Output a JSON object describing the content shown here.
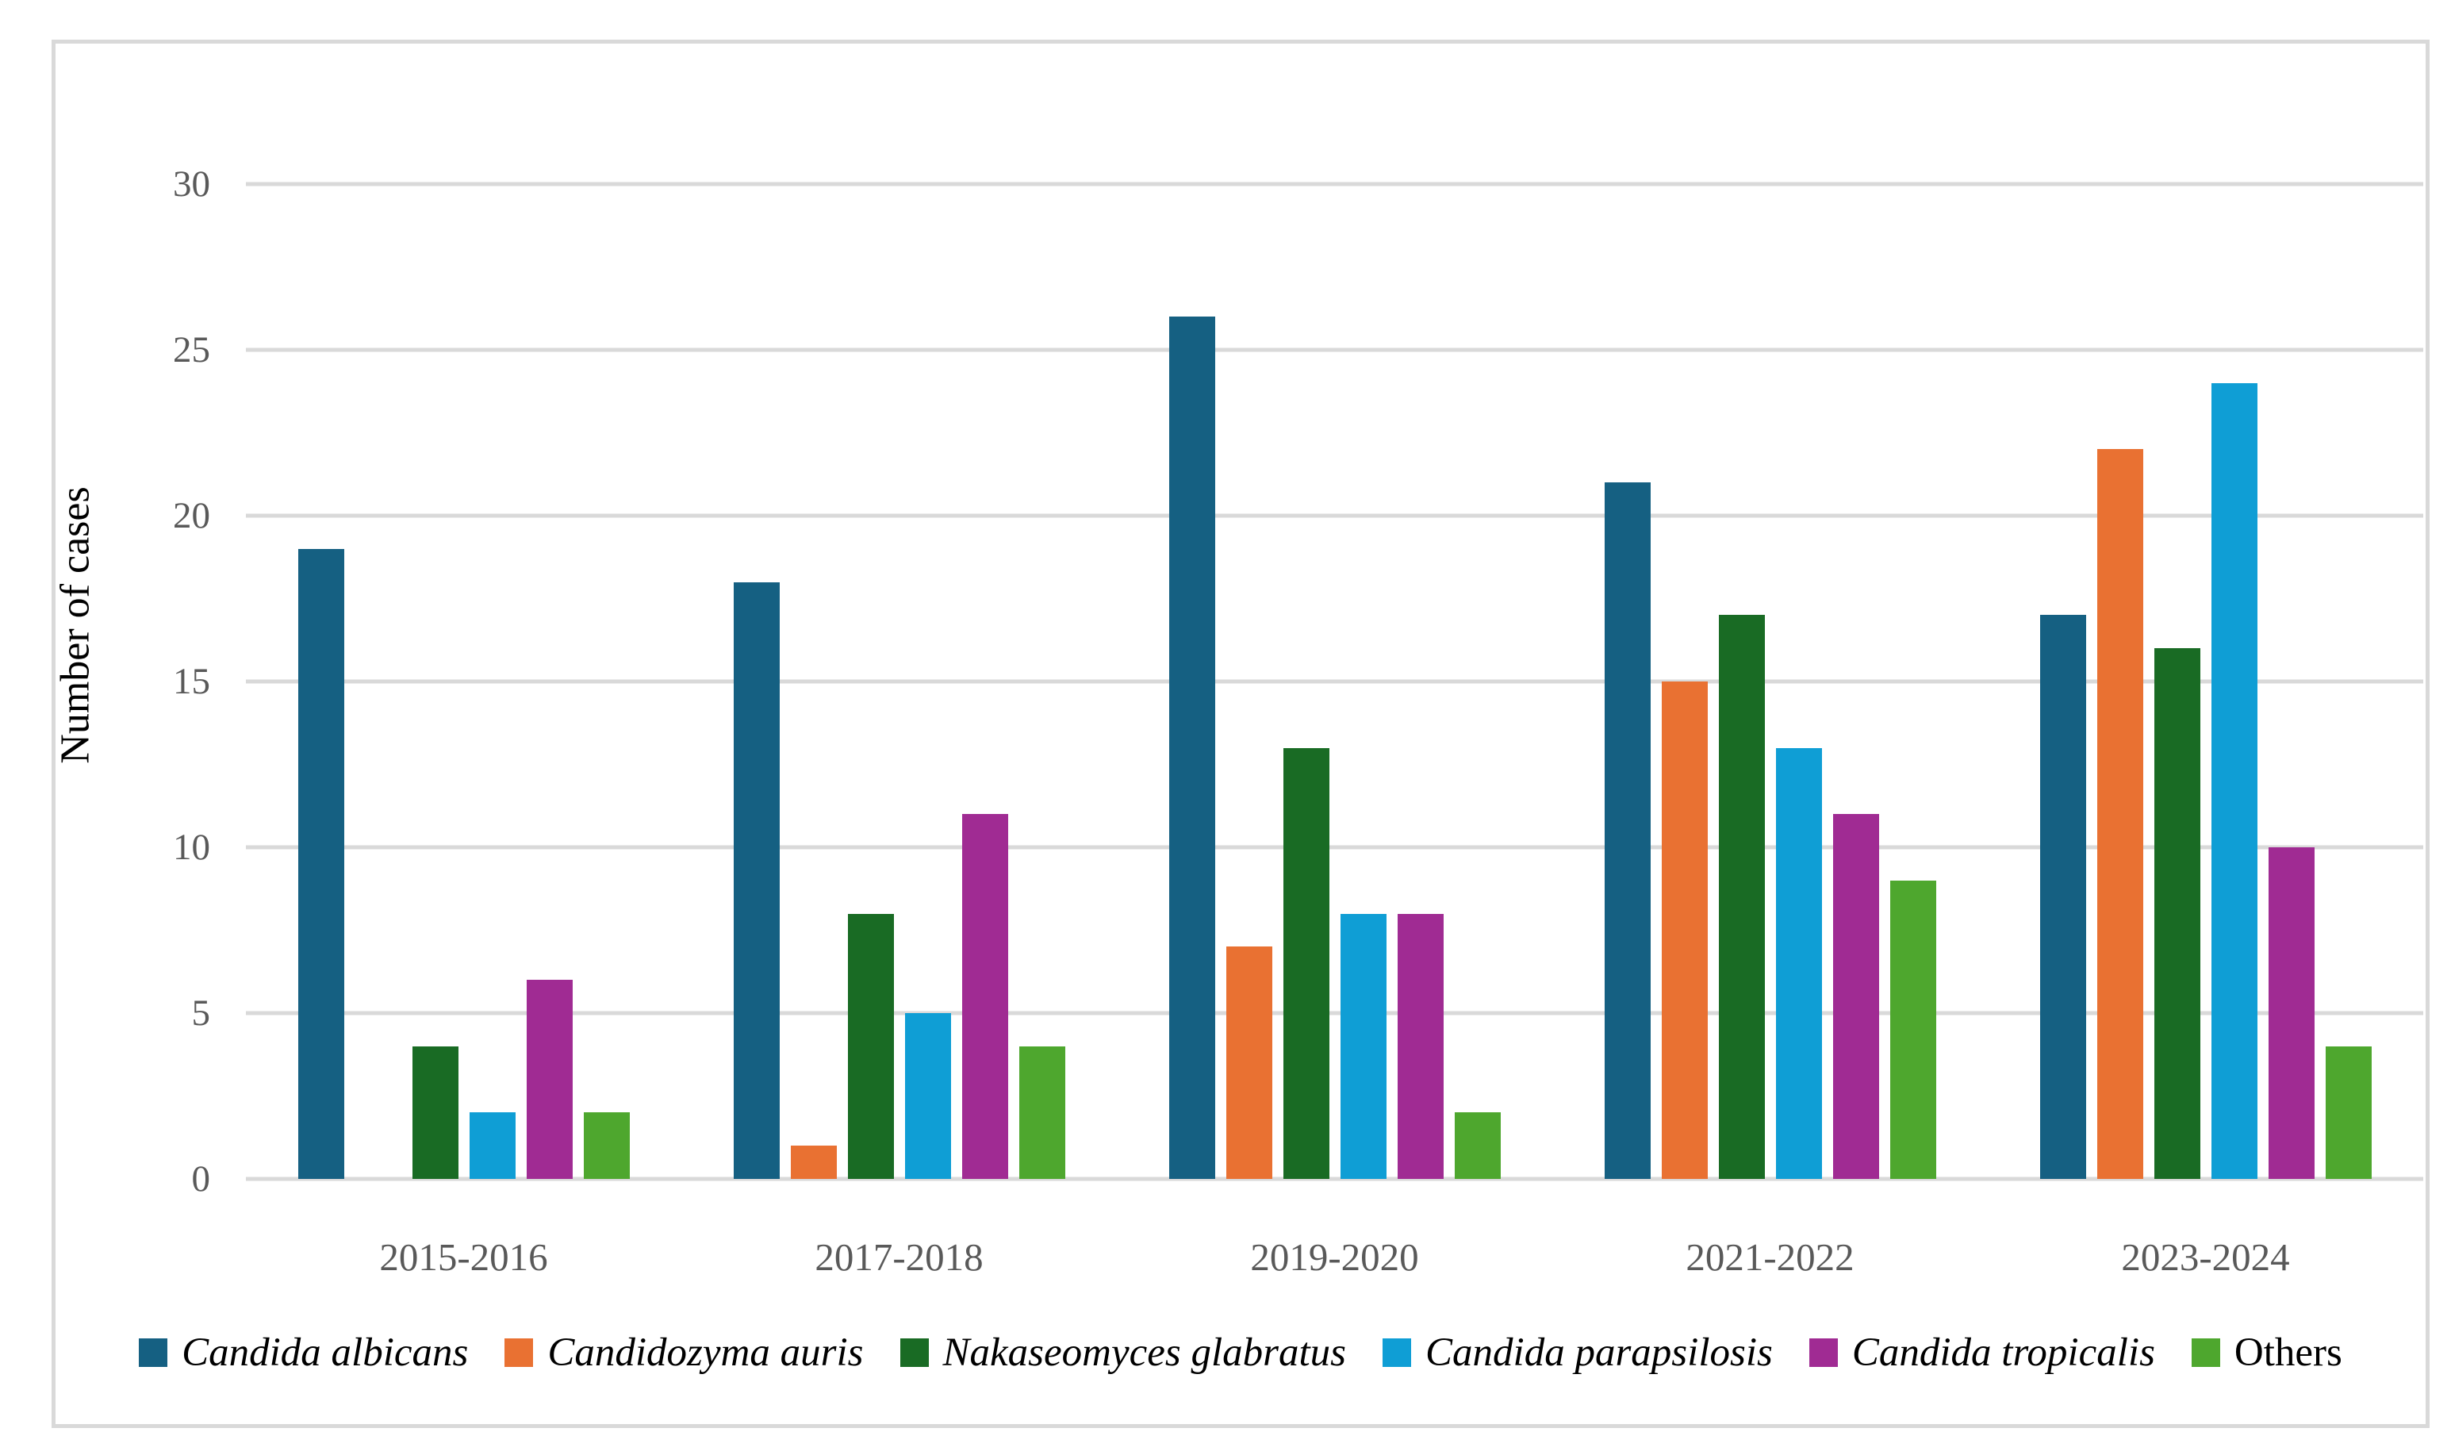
{
  "chart_data": {
    "type": "bar",
    "title": "",
    "ylabel": "Number of cases",
    "xlabel": "",
    "categories": [
      "2015-2016",
      "2017-2018",
      "2019-2020",
      "2021-2022",
      "2023-2024"
    ],
    "series": [
      {
        "name": "Candida albicans",
        "italic": true,
        "color": "#156082",
        "values": [
          19,
          18,
          26,
          21,
          17
        ]
      },
      {
        "name": "Candidozyma auris",
        "italic": true,
        "color": "#E97132",
        "values": [
          0,
          1,
          7,
          15,
          22
        ]
      },
      {
        "name": "Nakaseomyces glabratus",
        "italic": true,
        "color": "#196B24",
        "values": [
          4,
          8,
          13,
          17,
          16
        ]
      },
      {
        "name": "Candida parapsilosis",
        "italic": true,
        "color": "#0F9ED5",
        "values": [
          2,
          5,
          8,
          13,
          24
        ]
      },
      {
        "name": "Candida tropicalis",
        "italic": true,
        "color": "#A02B93",
        "values": [
          6,
          11,
          8,
          11,
          10
        ]
      },
      {
        "name": "Others",
        "italic": false,
        "color": "#4EA72E",
        "values": [
          2,
          4,
          2,
          9,
          4
        ]
      }
    ],
    "ylim": [
      0,
      30
    ],
    "yticks": [
      0,
      5,
      10,
      15,
      20,
      25,
      30
    ],
    "grid": true,
    "legend_position": "bottom"
  },
  "style": {
    "background": "#FFFFFF",
    "frame_border_color": "#D9D9D9",
    "grid_color": "#D9D9D9",
    "axis_label_color": "#595959",
    "legend_text_color": "#000000"
  }
}
